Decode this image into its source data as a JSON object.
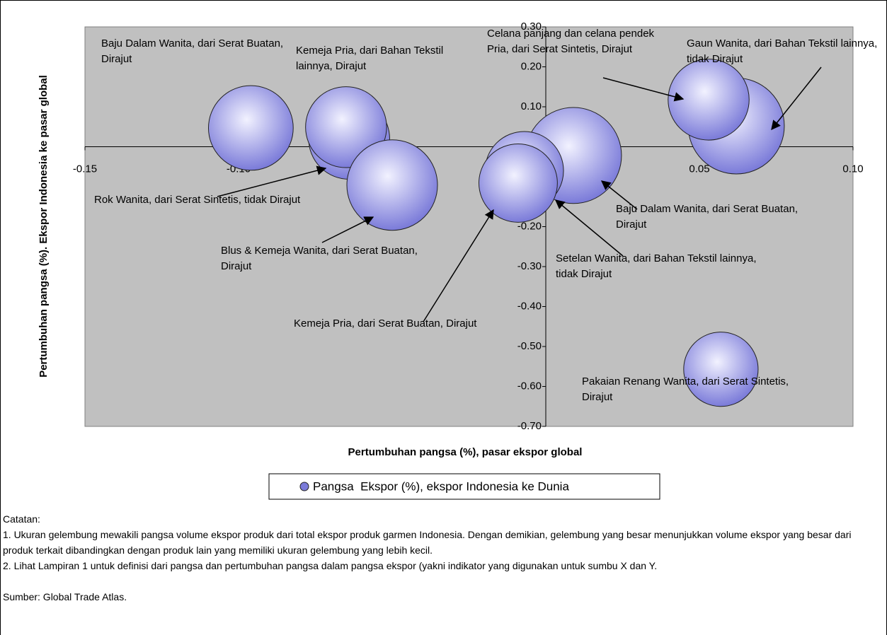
{
  "chart_data": {
    "type": "bubble",
    "xlabel": "Pertumbuhan pangsa (%), pasar ekspor global",
    "ylabel": "Pertumbuhan pangsa (%). Ekspor Indonesia ke pasar global",
    "xlim": [
      -0.15,
      0.1
    ],
    "xticks": [
      {
        "value": -0.15,
        "label": "-0.15"
      },
      {
        "value": -0.1,
        "label": "-0.10"
      },
      {
        "value": -0.05,
        "label": "-0.05"
      },
      {
        "value": 0,
        "label": "0.00"
      },
      {
        "value": 0.05,
        "label": "0.05"
      },
      {
        "value": 0.1,
        "label": "0.10"
      }
    ],
    "ylim": [
      -0.7,
      0.3
    ],
    "yticks": [
      {
        "value": 0.3,
        "label": "0.30"
      },
      {
        "value": 0.2,
        "label": "0.20"
      },
      {
        "value": 0.1,
        "label": "0.10"
      },
      {
        "value": 0,
        "label": "0.00"
      },
      {
        "value": -0.1,
        "label": "-0.10"
      },
      {
        "value": -0.2,
        "label": "-0.20"
      },
      {
        "value": -0.3,
        "label": "-0.30"
      },
      {
        "value": -0.4,
        "label": "-0.40"
      },
      {
        "value": -0.5,
        "label": "-0.50"
      },
      {
        "value": -0.6,
        "label": "-0.60"
      },
      {
        "value": -0.7,
        "label": "-0.70"
      }
    ],
    "legend": "bottom",
    "series": [
      {
        "name": "Pangsa  Ekspor (%), ekspor Indonesia ke Dunia",
        "color": "#7b7bd9",
        "labels": [
          "Baju Dalam Wanita, dari Serat Buatan, Dirajut",
          "Rok Wanita, dari Serat Sintetis, tidak Dirajut",
          "Kemeja Pria, dari Bahan Tekstil lainnya, Dirajut",
          "Blus & Kemeja Wanita, dari Serat Buatan, Dirajut",
          "Baju Dalam Wanita, dari Serat Buatan, Dirajut",
          "Setelan Wanita, dari Bahan Tekstil lainnya, tidak Dirajut",
          "Kemeja Pria, dari Serat Buatan, Dirajut",
          "Gaun Wanita, dari Bahan Tekstil lainnya, tidak Dirajut",
          "Celana panjang dan celana pendek Pria, dari Serat Sintetis, Dirajut",
          "Pakaian Renang Wanita, dari Serat Sintetis, Dirajut"
        ],
        "x": [
          -0.096,
          -0.064,
          -0.065,
          -0.05,
          0.009,
          -0.007,
          -0.009,
          0.062,
          0.053,
          0.057
        ],
        "values": [
          0.047,
          0.02,
          0.049,
          -0.096,
          -0.022,
          -0.06,
          -0.091,
          0.052,
          0.118,
          -0.557
        ],
        "sizes": [
          3.5,
          3.2,
          3.2,
          4.0,
          4.5,
          3.0,
          3.0,
          4.5,
          3.2,
          2.7
        ]
      }
    ]
  },
  "notes": {
    "heading": "Catatan:",
    "items": [
      "1. Ukuran gelembung mewakili pangsa volume ekspor produk dari total ekspor produk garmen Indonesia. Dengan demikian, gelembung yang besar menunjukkan volume ekspor yang besar dari produk terkait dibandingkan dengan produk lain yang memiliki ukuran gelembung yang lebih kecil.",
      "2. Lihat Lampiran 1 untuk definisi dari pangsa dan pertumbuhan pangsa dalam pangsa ekspor (yakni indikator yang digunakan untuk sumbu X dan Y."
    ],
    "source": "Sumber: Global Trade Atlas."
  }
}
